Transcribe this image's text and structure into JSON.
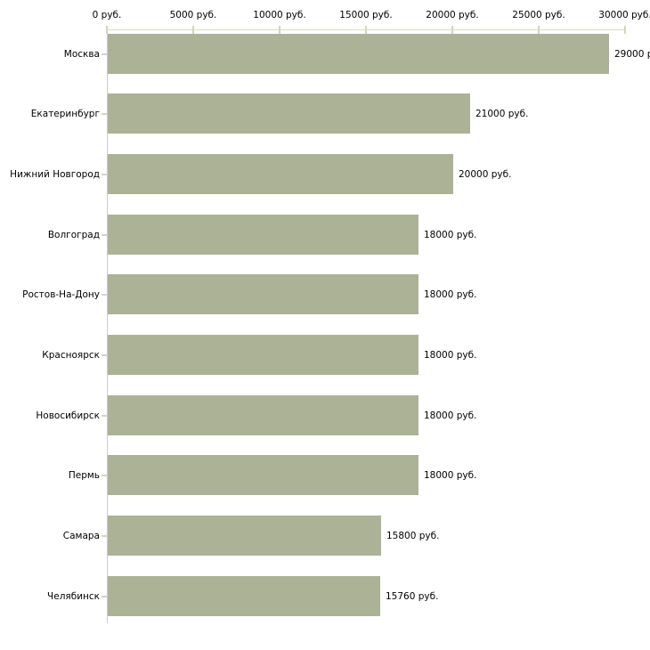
{
  "chart_data": {
    "type": "bar",
    "orientation": "horizontal",
    "title": "",
    "xlabel": "",
    "ylabel": "",
    "grid": false,
    "legend": false,
    "xlim": [
      0,
      30000
    ],
    "x_tick_values": [
      0,
      5000,
      10000,
      15000,
      20000,
      25000,
      30000
    ],
    "x_tick_labels": [
      "0 руб.",
      "5000 руб.",
      "10000 руб.",
      "15000 руб.",
      "20000 руб.",
      "25000 руб.",
      "30000 руб."
    ],
    "categories": [
      "Москва",
      "Екатеринбург",
      "Нижний Новгород",
      "Волгоград",
      "Ростов-На-Дону",
      "Красноярск",
      "Новосибирск",
      "Пермь",
      "Самара",
      "Челябинск"
    ],
    "values": [
      29000,
      21000,
      20000,
      18000,
      18000,
      18000,
      18000,
      18000,
      15800,
      15760
    ],
    "value_labels": [
      "29000 р",
      "21000 руб.",
      "20000 руб.",
      "18000 руб.",
      "18000 руб.",
      "18000 руб.",
      "18000 руб.",
      "18000 руб.",
      "15800 руб.",
      "15760 руб."
    ],
    "currency_unit": "руб.",
    "bar_color": "#acb296",
    "axis_line_color": "#d9dcc3",
    "tick_mark_color": "#d3d6b8",
    "yaxis_line_color": "#cccccc",
    "text_color": "#000000",
    "background_color": "#ffffff"
  }
}
